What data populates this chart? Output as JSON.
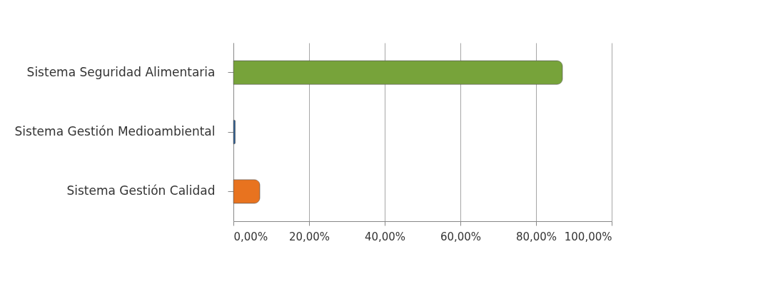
{
  "chart_data": {
    "type": "bar",
    "orientation": "horizontal",
    "categories": [
      "Sistema Seguridad Alimentaria",
      "Sistema Gestión Medioambiental",
      "Sistema Gestión Calidad"
    ],
    "values": [
      87,
      0.5,
      7
    ],
    "colors": [
      "#77a33a",
      "#2a5b91",
      "#e8731f"
    ],
    "xlim": [
      0,
      100
    ],
    "xticks": [
      {
        "value": 0,
        "label": "0,00%"
      },
      {
        "value": 20,
        "label": "20,00%"
      },
      {
        "value": 40,
        "label": "40,00%"
      },
      {
        "value": 60,
        "label": "60,00%"
      },
      {
        "value": 80,
        "label": "80,00%"
      },
      {
        "value": 100,
        "label": "100,00%"
      }
    ],
    "grid": "x"
  }
}
